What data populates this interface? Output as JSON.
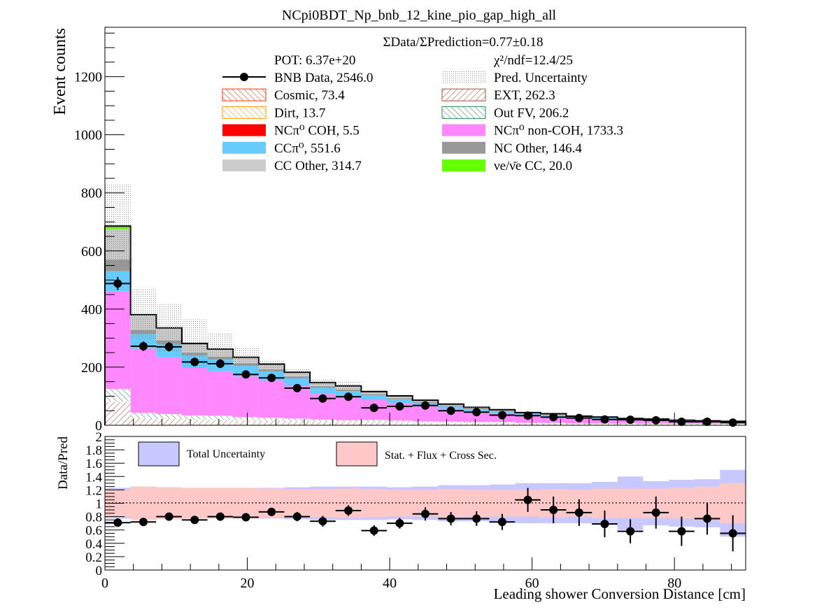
{
  "title": "NCpi0BDT_Np_bnb_12_kine_pio_gap_high_all",
  "colors": {
    "cosmic": "#ff3300",
    "ext": "#a0522d",
    "dirt": "#ff9900",
    "outfv": "#2e8b57",
    "nccoh": "#ff0000",
    "ncnoncoh": "#ff88ff",
    "ccpi0": "#66ccff",
    "ncother": "#999999",
    "ccother": "#cccccc",
    "nue": "#66ff00",
    "total_unc": "#c8c8ff",
    "stat_unc": "#ffc8c8"
  },
  "chart_data": [
    {
      "type": "bar",
      "stacked": true,
      "xlabel": "Leading shower Conversion Distance [cm]",
      "ylabel": "Event counts",
      "xlim": [
        0,
        90
      ],
      "ylim": [
        0,
        1370
      ],
      "yticks": [
        0,
        200,
        400,
        600,
        800,
        1000,
        1200
      ],
      "xticks": [
        0,
        20,
        40,
        60,
        80
      ],
      "bin_edges": [
        0,
        3.6,
        7.2,
        10.8,
        14.4,
        18,
        21.6,
        25.2,
        28.8,
        32.4,
        36,
        39.6,
        43.2,
        46.8,
        50.4,
        54,
        57.6,
        61.2,
        64.8,
        68.4,
        72,
        75.6,
        79.2,
        82.8,
        86.4,
        90
      ],
      "annotations": {
        "ratio": "ΣData/ΣPrediction=0.77±0.18",
        "pot": "POT: 6.37e+20",
        "chi2": "χ²/ndf=12.4/25"
      },
      "legend": [
        {
          "key": "data",
          "label": "BNB Data, 2546.0"
        },
        {
          "key": "pred_unc",
          "label": "Pred. Uncertainty"
        },
        {
          "key": "cosmic",
          "label": "Cosmic, 73.4"
        },
        {
          "key": "ext",
          "label": "EXT, 262.3"
        },
        {
          "key": "dirt",
          "label": "Dirt, 13.7"
        },
        {
          "key": "outfv",
          "label": "Out FV, 206.2"
        },
        {
          "key": "nccoh",
          "label": "NCπ⁰ COH,  5.5"
        },
        {
          "key": "ncnoncoh",
          "label": "NCπ⁰ non-COH,  1733.3"
        },
        {
          "key": "ccpi0",
          "label": "CCπ⁰, 551.6"
        },
        {
          "key": "ncother",
          "label": "NC Other, 146.4"
        },
        {
          "key": "ccother",
          "label": "CC Other, 314.7"
        },
        {
          "key": "nue",
          "label": "νe/ν̄e CC, 20.0"
        }
      ],
      "series": [
        {
          "key": "cosmic",
          "values": [
            5,
            4,
            4,
            3,
            3,
            3,
            3,
            2,
            2,
            2,
            2,
            2,
            2,
            2,
            2,
            2,
            1,
            1,
            1,
            1,
            1,
            1,
            1,
            1,
            1
          ]
        },
        {
          "key": "ext",
          "values": [
            75,
            20,
            18,
            16,
            15,
            13,
            12,
            10,
            9,
            8,
            8,
            8,
            6,
            6,
            5,
            5,
            4,
            4,
            3,
            3,
            3,
            3,
            2,
            2,
            2
          ]
        },
        {
          "key": "dirt",
          "values": [
            3,
            1,
            1,
            1,
            1,
            1,
            1,
            1,
            0.5,
            0.5,
            0.5,
            0.5,
            0.5,
            0.5,
            0.3,
            0.3,
            0.3,
            0.3,
            0.2,
            0.2,
            0.2,
            0.2,
            0.2,
            0.2,
            0.2
          ]
        },
        {
          "key": "outfv",
          "values": [
            42,
            18,
            16,
            14,
            14,
            11,
            10,
            10,
            8,
            7,
            8,
            6,
            5,
            4,
            4,
            4,
            3,
            3,
            2,
            2,
            2,
            2,
            2,
            2,
            2
          ]
        },
        {
          "key": "nccoh",
          "values": [
            0.5,
            0.4,
            0.4,
            0.3,
            0.3,
            0.3,
            0.3,
            0.2,
            0.2,
            0.2,
            0.2,
            0.2,
            0.2,
            0.2,
            0.2,
            0.2,
            0.2,
            0.2,
            0.1,
            0.1,
            0.1,
            0.1,
            0.1,
            0.1,
            0.1
          ]
        },
        {
          "key": "ncnoncoh",
          "values": [
            335,
            220,
            195,
            165,
            153,
            140,
            128,
            112,
            88,
            80,
            68,
            60,
            52,
            44,
            36,
            30,
            25,
            22,
            18,
            15,
            12,
            10,
            8,
            7,
            5
          ]
        },
        {
          "key": "ccpi0",
          "values": [
            70,
            50,
            45,
            40,
            40,
            36,
            31,
            26,
            21,
            20,
            16,
            13,
            10,
            8,
            7,
            5,
            5,
            4,
            3,
            3,
            2,
            2,
            2,
            1,
            1
          ]
        },
        {
          "key": "ncother",
          "values": [
            40,
            14,
            12,
            11,
            10,
            9,
            8,
            7,
            6,
            5,
            5,
            4,
            4,
            3,
            3,
            3,
            2,
            2,
            2,
            2,
            1,
            1,
            1,
            1,
            1
          ]
        },
        {
          "key": "ccother",
          "values": [
            105,
            50,
            42,
            30,
            25,
            20,
            17,
            14,
            12,
            12,
            8,
            7,
            6,
            5,
            4,
            4,
            3,
            3,
            2,
            2,
            2,
            2,
            1,
            1,
            1
          ]
        },
        {
          "key": "nue",
          "values": [
            10,
            3,
            2,
            1,
            1,
            1,
            0.5,
            0.5,
            0.5,
            0.5,
            0.3,
            0.3,
            0.3,
            0.2,
            0.2,
            0.2,
            0.2,
            0.2,
            0.1,
            0.1,
            0.1,
            0.1,
            0.1,
            0.1,
            0.1
          ]
        }
      ],
      "pred_unc_top": [
        828,
        467,
        416,
        365,
        318,
        270,
        225,
        195,
        160,
        150,
        120,
        100,
        90,
        72,
        63,
        50,
        42,
        38,
        30,
        28,
        25,
        22,
        18,
        15,
        12
      ],
      "data": {
        "values": [
          488,
          272,
          270,
          218,
          212,
          175,
          163,
          128,
          92,
          98,
          60,
          65,
          68,
          50,
          45,
          35,
          33,
          28,
          25,
          20,
          19,
          17,
          12,
          12,
          9
        ],
        "errors": [
          22,
          16,
          16,
          15,
          15,
          13,
          13,
          11,
          10,
          10,
          8,
          8,
          8,
          7,
          7,
          6,
          6,
          5,
          5,
          4,
          4,
          4,
          3,
          3,
          3
        ]
      }
    },
    {
      "type": "bar",
      "xlabel": "Leading shower Conversion Distance [cm]",
      "ylabel": "Data/Pred",
      "xlim": [
        0,
        90
      ],
      "ylim": [
        0,
        2
      ],
      "yticks": [
        0,
        0.2,
        0.4,
        0.6,
        0.8,
        1,
        1.2,
        1.4,
        1.6,
        1.8,
        2
      ],
      "xticks": [
        0,
        20,
        40,
        60,
        80
      ],
      "legend": [
        {
          "key": "total_unc",
          "label": "Total Uncertainty"
        },
        {
          "key": "stat_unc",
          "label": "Stat. + Flux + Cross Sec."
        }
      ],
      "total_unc_half": [
        0.23,
        0.24,
        0.23,
        0.22,
        0.22,
        0.23,
        0.23,
        0.24,
        0.25,
        0.25,
        0.25,
        0.24,
        0.25,
        0.27,
        0.27,
        0.28,
        0.3,
        0.3,
        0.3,
        0.32,
        0.4,
        0.33,
        0.35,
        0.36,
        0.5
      ],
      "stat_unc_half": [
        0.2,
        0.25,
        0.24,
        0.23,
        0.23,
        0.23,
        0.22,
        0.21,
        0.21,
        0.22,
        0.21,
        0.2,
        0.2,
        0.21,
        0.2,
        0.2,
        0.2,
        0.21,
        0.2,
        0.22,
        0.22,
        0.22,
        0.23,
        0.25,
        0.3
      ],
      "ratio": {
        "values": [
          0.71,
          0.72,
          0.8,
          0.75,
          0.8,
          0.79,
          0.87,
          0.8,
          0.73,
          0.89,
          0.59,
          0.7,
          0.84,
          0.77,
          0.77,
          0.72,
          1.05,
          0.9,
          0.86,
          0.69,
          0.58,
          0.86,
          0.58,
          0.77,
          0.55
        ],
        "errors": [
          0.04,
          0.04,
          0.05,
          0.05,
          0.05,
          0.05,
          0.06,
          0.07,
          0.08,
          0.08,
          0.08,
          0.08,
          0.1,
          0.1,
          0.11,
          0.12,
          0.18,
          0.2,
          0.2,
          0.2,
          0.18,
          0.24,
          0.22,
          0.24,
          0.27
        ]
      }
    }
  ]
}
